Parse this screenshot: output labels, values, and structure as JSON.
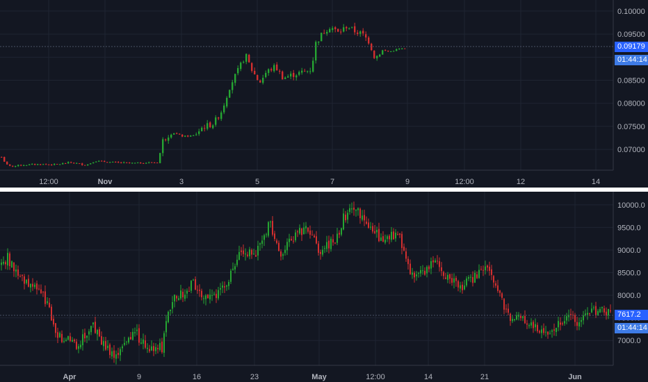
{
  "colors": {
    "background": "#131722",
    "up": "#26a532",
    "down": "#d32f2f",
    "text": "#b2b5be",
    "grid": "#1f2432",
    "price_tag": "#2962ff",
    "timer_tag": "#3e7be6",
    "separator": "#ffffff"
  },
  "chart_data": [
    {
      "type": "candlestick",
      "grid": true,
      "x_tick_labels": [
        "12:00",
        "Nov",
        "3",
        "5",
        "7",
        "9",
        "12:00",
        "12",
        "14"
      ],
      "y_tick_labels": [
        "0.10000",
        "0.09500",
        "0.09000",
        "0.08500",
        "0.08000",
        "0.07500",
        "0.07000"
      ],
      "ylim": [
        0.0655,
        0.1024
      ],
      "last_price": "0.09179",
      "countdown": "01:44:14",
      "series": [
        {
          "x": 0,
          "y": 0.0686,
          "trend": "flat"
        },
        {
          "x": 8,
          "y": 0.0667,
          "trend": "flat"
        },
        {
          "x": 14,
          "y": 0.0663,
          "trend": "flat"
        },
        {
          "x": 30,
          "y": 0.0666,
          "trend": "flat"
        },
        {
          "x": 55,
          "y": 0.0668,
          "trend": "flat"
        },
        {
          "x": 80,
          "y": 0.0667,
          "trend": "flat"
        },
        {
          "x": 100,
          "y": 0.0672,
          "trend": "flat"
        },
        {
          "x": 123,
          "y": 0.0666,
          "trend": "flat"
        },
        {
          "x": 135,
          "y": 0.0675,
          "trend": "flat"
        },
        {
          "x": 160,
          "y": 0.0672,
          "trend": "flat"
        },
        {
          "x": 190,
          "y": 0.067,
          "trend": "flat"
        },
        {
          "x": 226,
          "y": 0.0672,
          "trend": "flat"
        },
        {
          "x": 233,
          "y": 0.0719,
          "trend": "up"
        },
        {
          "x": 245,
          "y": 0.0738,
          "trend": "up"
        },
        {
          "x": 262,
          "y": 0.0728,
          "trend": "flat"
        },
        {
          "x": 278,
          "y": 0.073,
          "trend": "flat"
        },
        {
          "x": 290,
          "y": 0.0748,
          "trend": "up"
        },
        {
          "x": 306,
          "y": 0.0756,
          "trend": "up"
        },
        {
          "x": 318,
          "y": 0.0785,
          "trend": "up"
        },
        {
          "x": 330,
          "y": 0.084,
          "trend": "up"
        },
        {
          "x": 341,
          "y": 0.087,
          "trend": "up"
        },
        {
          "x": 352,
          "y": 0.0905,
          "trend": "up"
        },
        {
          "x": 360,
          "y": 0.0875,
          "trend": "down"
        },
        {
          "x": 372,
          "y": 0.0845,
          "trend": "down"
        },
        {
          "x": 382,
          "y": 0.0868,
          "trend": "up"
        },
        {
          "x": 395,
          "y": 0.088,
          "trend": "up"
        },
        {
          "x": 406,
          "y": 0.0855,
          "trend": "down"
        },
        {
          "x": 420,
          "y": 0.0862,
          "trend": "up"
        },
        {
          "x": 436,
          "y": 0.0868,
          "trend": "up"
        },
        {
          "x": 447,
          "y": 0.0874,
          "trend": "up"
        },
        {
          "x": 452,
          "y": 0.0928,
          "trend": "up"
        },
        {
          "x": 464,
          "y": 0.0955,
          "trend": "up"
        },
        {
          "x": 474,
          "y": 0.0967,
          "trend": "up"
        },
        {
          "x": 486,
          "y": 0.0952,
          "trend": "down"
        },
        {
          "x": 498,
          "y": 0.0968,
          "trend": "up"
        },
        {
          "x": 508,
          "y": 0.0957,
          "trend": "down"
        },
        {
          "x": 520,
          "y": 0.095,
          "trend": "down"
        },
        {
          "x": 530,
          "y": 0.0933,
          "trend": "down"
        },
        {
          "x": 538,
          "y": 0.0898,
          "trend": "down"
        },
        {
          "x": 548,
          "y": 0.0915,
          "trend": "up"
        },
        {
          "x": 560,
          "y": 0.0912,
          "trend": "flat"
        },
        {
          "x": 572,
          "y": 0.0918,
          "trend": "flat"
        },
        {
          "x": 582,
          "y": 0.0918,
          "trend": "flat"
        }
      ]
    },
    {
      "type": "candlestick",
      "grid": true,
      "x_tick_labels": [
        "Apr",
        "9",
        "16",
        "23",
        "May",
        "12:00",
        "14",
        "21",
        "Jun"
      ],
      "y_tick_labels": [
        "10000.0",
        "9500.0",
        "9000.0",
        "8500.0",
        "8000.0",
        "7500.0",
        "7000.0"
      ],
      "ylim": [
        6450,
        10290
      ],
      "last_price": "7617.2",
      "countdown": "01:44:14",
      "series": [
        {
          "x": 0,
          "y": 8650,
          "trend": "up"
        },
        {
          "x": 10,
          "y": 8850,
          "trend": "up"
        },
        {
          "x": 20,
          "y": 8500,
          "trend": "down"
        },
        {
          "x": 35,
          "y": 8350,
          "trend": "down"
        },
        {
          "x": 50,
          "y": 8150,
          "trend": "down"
        },
        {
          "x": 62,
          "y": 8000,
          "trend": "down"
        },
        {
          "x": 72,
          "y": 7600,
          "trend": "down"
        },
        {
          "x": 82,
          "y": 7050,
          "trend": "down"
        },
        {
          "x": 95,
          "y": 7100,
          "trend": "up"
        },
        {
          "x": 108,
          "y": 6900,
          "trend": "down"
        },
        {
          "x": 120,
          "y": 7100,
          "trend": "up"
        },
        {
          "x": 132,
          "y": 7350,
          "trend": "up"
        },
        {
          "x": 142,
          "y": 7050,
          "trend": "down"
        },
        {
          "x": 152,
          "y": 6800,
          "trend": "down"
        },
        {
          "x": 165,
          "y": 6700,
          "trend": "down"
        },
        {
          "x": 178,
          "y": 7000,
          "trend": "up"
        },
        {
          "x": 192,
          "y": 7200,
          "trend": "up"
        },
        {
          "x": 205,
          "y": 6950,
          "trend": "down"
        },
        {
          "x": 218,
          "y": 6800,
          "trend": "down"
        },
        {
          "x": 232,
          "y": 6850,
          "trend": "up"
        },
        {
          "x": 240,
          "y": 7500,
          "trend": "up"
        },
        {
          "x": 250,
          "y": 7900,
          "trend": "up"
        },
        {
          "x": 262,
          "y": 8050,
          "trend": "up"
        },
        {
          "x": 276,
          "y": 8250,
          "trend": "up"
        },
        {
          "x": 290,
          "y": 8050,
          "trend": "down"
        },
        {
          "x": 302,
          "y": 7950,
          "trend": "down"
        },
        {
          "x": 315,
          "y": 8100,
          "trend": "up"
        },
        {
          "x": 330,
          "y": 8400,
          "trend": "up"
        },
        {
          "x": 342,
          "y": 8850,
          "trend": "up"
        },
        {
          "x": 355,
          "y": 8900,
          "trend": "up"
        },
        {
          "x": 368,
          "y": 8950,
          "trend": "up"
        },
        {
          "x": 378,
          "y": 9200,
          "trend": "up"
        },
        {
          "x": 386,
          "y": 9650,
          "trend": "up"
        },
        {
          "x": 396,
          "y": 9200,
          "trend": "down"
        },
        {
          "x": 404,
          "y": 8800,
          "trend": "down"
        },
        {
          "x": 414,
          "y": 9150,
          "trend": "up"
        },
        {
          "x": 426,
          "y": 9350,
          "trend": "up"
        },
        {
          "x": 438,
          "y": 9450,
          "trend": "up"
        },
        {
          "x": 450,
          "y": 9250,
          "trend": "down"
        },
        {
          "x": 460,
          "y": 8950,
          "trend": "down"
        },
        {
          "x": 472,
          "y": 9100,
          "trend": "up"
        },
        {
          "x": 485,
          "y": 9300,
          "trend": "up"
        },
        {
          "x": 492,
          "y": 9700,
          "trend": "up"
        },
        {
          "x": 502,
          "y": 9850,
          "trend": "up"
        },
        {
          "x": 512,
          "y": 9950,
          "trend": "up"
        },
        {
          "x": 522,
          "y": 9600,
          "trend": "down"
        },
        {
          "x": 535,
          "y": 9450,
          "trend": "down"
        },
        {
          "x": 548,
          "y": 9250,
          "trend": "down"
        },
        {
          "x": 560,
          "y": 9300,
          "trend": "up"
        },
        {
          "x": 572,
          "y": 9350,
          "trend": "up"
        },
        {
          "x": 580,
          "y": 8950,
          "trend": "down"
        },
        {
          "x": 590,
          "y": 8500,
          "trend": "down"
        },
        {
          "x": 602,
          "y": 8400,
          "trend": "down"
        },
        {
          "x": 614,
          "y": 8650,
          "trend": "up"
        },
        {
          "x": 626,
          "y": 8800,
          "trend": "up"
        },
        {
          "x": 636,
          "y": 8500,
          "trend": "down"
        },
        {
          "x": 648,
          "y": 8350,
          "trend": "down"
        },
        {
          "x": 660,
          "y": 8150,
          "trend": "down"
        },
        {
          "x": 672,
          "y": 8300,
          "trend": "up"
        },
        {
          "x": 685,
          "y": 8450,
          "trend": "up"
        },
        {
          "x": 695,
          "y": 8600,
          "trend": "up"
        },
        {
          "x": 705,
          "y": 8400,
          "trend": "down"
        },
        {
          "x": 715,
          "y": 8100,
          "trend": "down"
        },
        {
          "x": 724,
          "y": 7700,
          "trend": "down"
        },
        {
          "x": 736,
          "y": 7400,
          "trend": "down"
        },
        {
          "x": 748,
          "y": 7550,
          "trend": "up"
        },
        {
          "x": 760,
          "y": 7350,
          "trend": "down"
        },
        {
          "x": 772,
          "y": 7250,
          "trend": "down"
        },
        {
          "x": 784,
          "y": 7200,
          "trend": "down"
        },
        {
          "x": 794,
          "y": 7150,
          "trend": "down"
        },
        {
          "x": 806,
          "y": 7450,
          "trend": "up"
        },
        {
          "x": 818,
          "y": 7500,
          "trend": "up"
        },
        {
          "x": 830,
          "y": 7400,
          "trend": "down"
        },
        {
          "x": 845,
          "y": 7550,
          "trend": "up"
        },
        {
          "x": 860,
          "y": 7700,
          "trend": "up"
        },
        {
          "x": 870,
          "y": 7550,
          "trend": "down"
        },
        {
          "x": 878,
          "y": 7617,
          "trend": "up"
        }
      ]
    }
  ]
}
